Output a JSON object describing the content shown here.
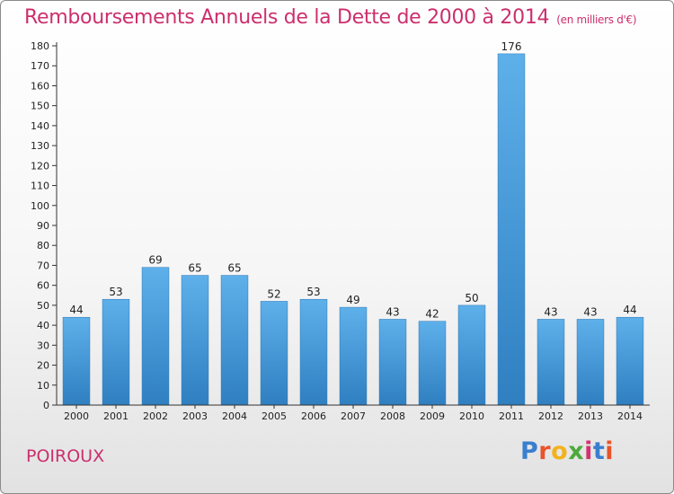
{
  "header": {
    "title": "Remboursements Annuels de la Dette de 2000 à 2014",
    "unit": "(en milliers d'€)"
  },
  "footer": {
    "commune": "POIROUX",
    "logo_letters": [
      "P",
      "r",
      "o",
      "x",
      "i",
      "t",
      "i"
    ],
    "logo_colors": [
      "#3a7fcf",
      "#e8542b",
      "#f2b21c",
      "#4caa3c",
      "#d2326f",
      "#3a7fcf",
      "#e8542b"
    ]
  },
  "colors": {
    "bar_light": "#5eb0ea",
    "bar_dark": "#2f7fc1",
    "title": "#cc2f6d"
  },
  "chart_data": {
    "type": "bar",
    "title": "Remboursements Annuels de la Dette de 2000 à 2014",
    "categories": [
      "2000",
      "2001",
      "2002",
      "2003",
      "2004",
      "2005",
      "2006",
      "2007",
      "2008",
      "2009",
      "2010",
      "2011",
      "2012",
      "2013",
      "2014"
    ],
    "values": [
      44,
      53,
      69,
      65,
      65,
      52,
      53,
      49,
      43,
      42,
      50,
      176,
      43,
      43,
      44
    ],
    "value_labels": [
      "44",
      "53",
      "69",
      "65",
      "65",
      "52",
      "53",
      "49",
      "43",
      "42",
      "50",
      "176",
      "43",
      "43",
      "44"
    ],
    "ylim": [
      0,
      180
    ],
    "yticks": [
      0,
      10,
      20,
      30,
      40,
      50,
      60,
      70,
      80,
      90,
      100,
      110,
      120,
      130,
      140,
      150,
      160,
      170,
      180
    ],
    "ytick_labels": [
      "0",
      "10",
      "20",
      "30",
      "40",
      "50",
      "60",
      "70",
      "80",
      "90",
      "100",
      "110",
      "120",
      "130",
      "140",
      "150",
      "160",
      "170",
      "180"
    ],
    "grid": false,
    "legend": "none"
  }
}
